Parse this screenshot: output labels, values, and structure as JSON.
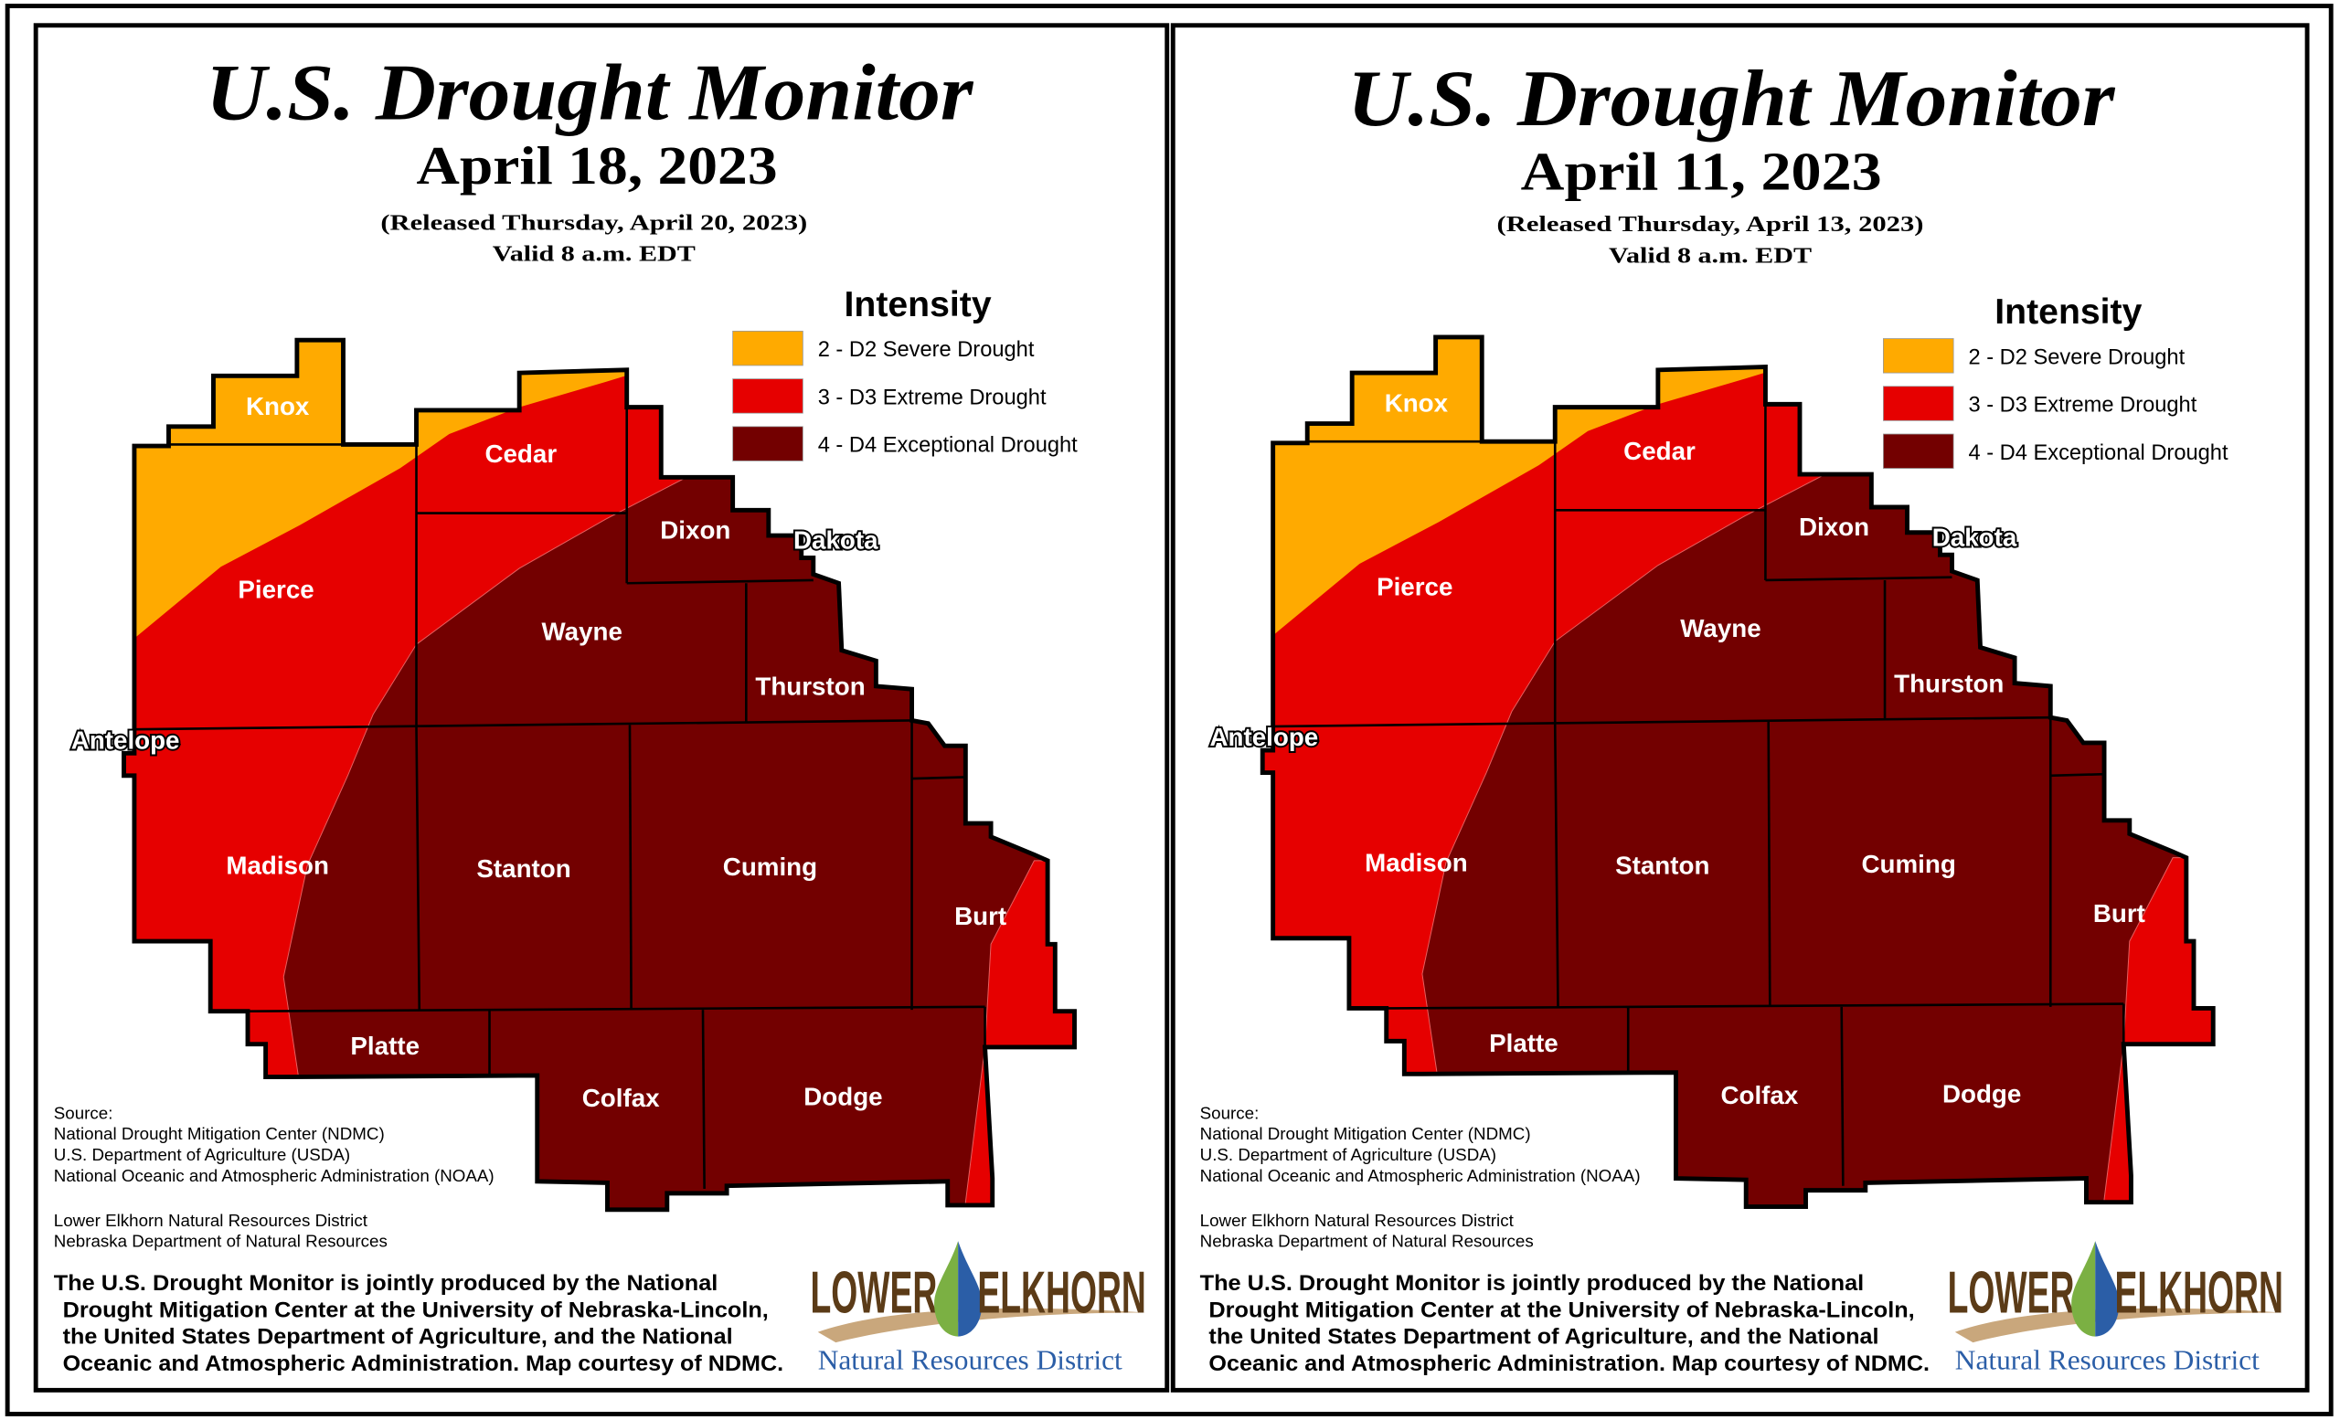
{
  "colors": {
    "d2": "#FFAA00",
    "d3": "#E60000",
    "d4": "#730000",
    "border": "#000000",
    "logo_brown": "#5b3b17",
    "logo_blue": "#2b5ea7",
    "logo_green": "#7bb043",
    "logo_tan": "#c9a77c"
  },
  "panels": [
    {
      "title": "U.S. Drought Monitor",
      "date": "April 18, 2023",
      "released": "(Released Thursday, April 20, 2023)",
      "valid": "Valid 8 a.m. EDT",
      "legend": {
        "title": "Intensity",
        "items": [
          {
            "label": "2 - D2 Severe Drought",
            "color": "#FFAA00"
          },
          {
            "label": "3 - D3 Extreme Drought",
            "color": "#E60000"
          },
          {
            "label": "4 - D4 Exceptional Drought",
            "color": "#730000"
          }
        ]
      },
      "counties": [
        "Knox",
        "Cedar",
        "Pierce",
        "Dixon",
        "Dakota",
        "Wayne",
        "Thurston",
        "Antelope",
        "Madison",
        "Stanton",
        "Cuming",
        "Burt",
        "Platte",
        "Colfax",
        "Dodge"
      ],
      "source_lines": [
        "Source:",
        "National Drought Mitigation Center (NDMC)",
        "U.S. Department of Agriculture (USDA)",
        "National Oceanic and Atmospheric Administration (NOAA)",
        "Lower Elkhorn Natural Resources District",
        "Nebraska Department of Natural Resources"
      ],
      "credit_lines": [
        "The U.S. Drought Monitor is jointly produced by the National",
        "Drought Mitigation Center at the University of Nebraska-Lincoln,",
        "the United States Department of Agriculture, and the National",
        "Oceanic and Atmospheric Administration. Map courtesy of NDMC."
      ],
      "logo": {
        "left": "LOWER",
        "right": "ELKHORN",
        "sub": "Natural Resources District"
      }
    },
    {
      "title": "U.S. Drought Monitor",
      "date": "April 11, 2023",
      "released": "(Released Thursday, April 13, 2023)",
      "valid": "Valid 8 a.m. EDT",
      "legend": {
        "title": "Intensity",
        "items": [
          {
            "label": "2 - D2 Severe Drought",
            "color": "#FFAA00"
          },
          {
            "label": "3 - D3 Extreme Drought",
            "color": "#E60000"
          },
          {
            "label": "4 - D4 Exceptional Drought",
            "color": "#730000"
          }
        ]
      },
      "counties": [
        "Knox",
        "Cedar",
        "Pierce",
        "Dixon",
        "Dakota",
        "Wayne",
        "Thurston",
        "Antelope",
        "Madison",
        "Stanton",
        "Cuming",
        "Burt",
        "Platte",
        "Colfax",
        "Dodge"
      ],
      "source_lines": [
        "Source:",
        "National Drought Mitigation Center (NDMC)",
        "U.S. Department of Agriculture (USDA)",
        "National Oceanic and Atmospheric Administration (NOAA)",
        "Lower Elkhorn Natural Resources District",
        "Nebraska Department of Natural Resources"
      ],
      "credit_lines": [
        "The U.S. Drought Monitor is jointly produced by the National",
        "Drought Mitigation Center at the University of Nebraska-Lincoln,",
        "the United States Department of Agriculture, and the National",
        "Oceanic and Atmospheric Administration. Map courtesy of NDMC."
      ],
      "logo": {
        "left": "LOWER",
        "right": "ELKHORN",
        "sub": "Natural Resources District"
      }
    }
  ]
}
